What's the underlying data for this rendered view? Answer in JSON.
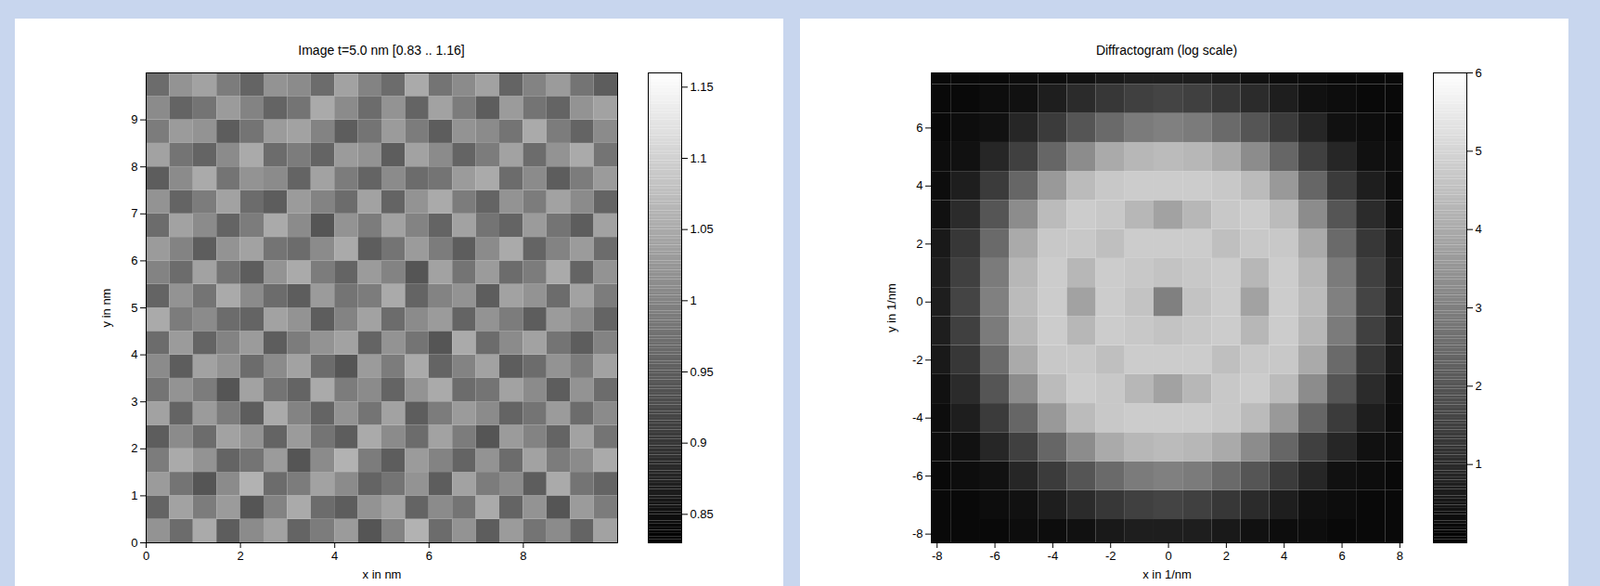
{
  "chart_data": [
    {
      "type": "heatmap",
      "title": "Image t=5.0 nm [0.83 .. 1.16]",
      "x_label": "x in nm",
      "y_label": "y in nm",
      "xlim": [
        0,
        10
      ],
      "ylim": [
        0,
        10
      ],
      "xticks": [
        0,
        2,
        4,
        6,
        8
      ],
      "yticks": [
        0,
        1,
        2,
        3,
        4,
        5,
        6,
        7,
        8,
        9
      ],
      "cells": {
        "x_edges": [
          0,
          0.5,
          1,
          1.5,
          2,
          2.5,
          3,
          3.5,
          4,
          4.5,
          5,
          5.5,
          6,
          6.5,
          7,
          7.5,
          8,
          8.5,
          9,
          9.5,
          10
        ],
        "y_edges": [
          0,
          0.5,
          1,
          1.5,
          2,
          2.5,
          3,
          3.5,
          4,
          4.5,
          5,
          5.5,
          6,
          6.5,
          7,
          7.5,
          8,
          8.5,
          9,
          9.5,
          10
        ],
        "values": [
          [
            1.02,
            0.97,
            1.05,
            0.95,
            1.01,
            1.04,
            0.96,
            0.99,
            1.03,
            0.94,
            1.0,
            1.06,
            0.97,
            1.02,
            0.95,
            1.03,
            0.98,
            1.01,
            0.96,
            1.04
          ],
          [
            0.96,
            1.04,
            0.99,
            1.03,
            0.94,
            1.0,
            1.05,
            0.97,
            0.95,
            1.02,
            1.04,
            0.96,
            1.01,
            0.98,
            1.05,
            0.96,
            1.02,
            0.94,
            1.03,
            0.99
          ],
          [
            1.03,
            0.98,
            0.94,
            1.01,
            1.06,
            0.97,
            0.99,
            1.04,
            1.01,
            0.96,
            0.98,
            1.02,
            0.95,
            1.04,
            0.99,
            1.01,
            0.95,
            1.05,
            0.98,
            0.96
          ],
          [
            0.99,
            1.05,
            1.02,
            0.96,
            0.98,
            1.03,
            0.94,
            1.01,
            1.06,
            0.99,
            0.95,
            1.03,
            1.0,
            0.96,
            1.02,
            0.97,
            1.04,
            0.99,
            1.01,
            1.05
          ],
          [
            0.95,
            1.01,
            0.97,
            1.04,
            1.02,
            0.96,
            1.03,
            0.98,
            0.95,
            1.05,
            1.01,
            0.97,
            1.04,
            0.99,
            0.94,
            1.03,
            1.0,
            0.96,
            1.04,
            0.98
          ],
          [
            1.04,
            0.96,
            1.03,
            0.99,
            0.95,
            1.05,
            1.0,
            0.96,
            1.02,
            0.98,
            1.04,
            0.95,
            0.99,
            1.03,
            1.01,
            0.96,
            0.98,
            1.03,
            0.97,
            1.01
          ],
          [
            0.98,
            1.02,
            0.99,
            0.94,
            1.04,
            0.98,
            0.96,
            1.05,
            0.99,
            1.01,
            0.96,
            1.02,
            1.05,
            0.97,
            0.98,
            1.04,
            1.01,
            0.95,
            1.02,
            0.97
          ],
          [
            1.01,
            0.95,
            1.04,
            1.02,
            0.97,
            1.01,
            1.04,
            0.97,
            0.94,
            1.03,
            0.99,
            1.05,
            0.96,
            1.0,
            1.04,
            0.95,
            0.97,
            1.02,
            0.99,
            1.04
          ],
          [
            0.97,
            1.03,
            0.96,
            1.0,
            1.03,
            0.95,
            0.99,
            1.02,
            1.04,
            0.96,
            1.02,
            0.98,
            0.94,
            1.05,
            0.97,
            1.01,
            1.04,
            0.98,
            0.95,
            1.0
          ],
          [
            1.05,
            0.99,
            1.01,
            0.97,
            0.96,
            1.04,
            1.02,
            0.95,
            1.0,
            1.04,
            0.97,
            1.01,
            1.03,
            0.96,
            1.02,
            0.99,
            0.95,
            1.03,
            1.01,
            0.96
          ],
          [
            0.96,
            1.02,
            0.98,
            1.05,
            1.01,
            0.97,
            0.95,
            1.03,
            0.98,
            0.99,
            1.05,
            0.96,
            1.0,
            1.02,
            0.95,
            1.04,
            1.02,
            0.97,
            1.04,
            0.99
          ],
          [
            1.0,
            0.97,
            1.04,
            0.98,
            0.95,
            1.02,
            1.05,
            0.99,
            0.96,
            1.03,
            1.0,
            0.94,
            1.04,
            0.98,
            1.03,
            0.97,
            0.99,
            1.05,
            0.96,
            1.02
          ],
          [
            1.03,
            1.0,
            0.95,
            1.02,
            1.04,
            0.98,
            0.97,
            1.01,
            1.05,
            0.95,
            0.98,
            1.03,
            0.99,
            0.95,
            1.01,
            1.05,
            0.96,
            1.0,
            1.03,
            0.97
          ],
          [
            0.97,
            1.04,
            1.01,
            0.96,
            0.99,
            1.05,
            1.01,
            0.94,
            1.02,
            0.99,
            1.04,
            1.0,
            0.96,
            1.04,
            0.98,
            0.96,
            1.03,
            0.98,
            0.95,
            1.04
          ],
          [
            1.02,
            0.96,
            0.99,
            1.04,
            0.97,
            0.95,
            1.03,
            1.0,
            0.97,
            1.04,
            0.96,
            1.02,
            1.05,
            0.99,
            0.96,
            1.02,
            0.99,
            1.04,
            1.01,
            0.96
          ],
          [
            0.95,
            1.01,
            1.05,
            0.98,
            1.02,
            1.01,
            0.96,
            1.04,
            0.99,
            0.96,
            1.01,
            0.97,
            0.98,
            1.03,
            1.05,
            0.97,
            1.01,
            0.95,
            0.99,
            1.03
          ],
          [
            1.04,
            0.98,
            0.96,
            1.01,
            1.05,
            0.97,
            0.99,
            0.96,
            1.03,
            1.02,
            0.95,
            1.04,
            1.01,
            0.96,
            0.99,
            1.04,
            0.97,
            1.02,
            1.05,
            0.98
          ],
          [
            0.99,
            1.03,
            1.02,
            0.95,
            0.98,
            1.03,
            1.04,
            1.0,
            0.95,
            0.98,
            1.03,
            0.99,
            0.95,
            1.02,
            1.01,
            0.98,
            1.05,
            0.99,
            0.96,
            1.01
          ],
          [
            1.01,
            0.96,
            0.98,
            1.03,
            1.0,
            0.96,
            0.98,
            1.05,
            1.01,
            0.97,
            1.02,
            0.96,
            1.04,
            0.99,
            0.95,
            1.03,
            0.98,
            0.96,
            1.02,
            1.04
          ],
          [
            0.97,
            1.02,
            1.04,
            0.99,
            0.96,
            1.02,
            1.01,
            0.97,
            1.04,
            1.0,
            0.97,
            1.05,
            0.98,
            1.01,
            1.04,
            0.96,
            1.0,
            1.03,
            0.98,
            0.95
          ]
        ]
      },
      "colorbar": {
        "range": [
          0.83,
          1.16
        ],
        "ticks": [
          0.85,
          0.9,
          0.95,
          1,
          1.05,
          1.1,
          1.15
        ]
      }
    },
    {
      "type": "heatmap",
      "title": "Diffractogram (log scale)",
      "x_label": "x in 1/nm",
      "y_label": "y in 1/nm",
      "xlim": [
        -8.2,
        8.1
      ],
      "ylim": [
        -8.3,
        7.9
      ],
      "xticks": [
        -8,
        -6,
        -4,
        -2,
        0,
        2,
        4,
        6,
        8
      ],
      "yticks": [
        -8,
        -6,
        -4,
        -2,
        0,
        2,
        4,
        6
      ],
      "cells": {
        "x_edges": [
          -8.5,
          -7.5,
          -6.5,
          -5.5,
          -4.5,
          -3.5,
          -2.5,
          -1.5,
          -0.5,
          0.5,
          1.5,
          2.5,
          3.5,
          4.5,
          5.5,
          6.5,
          7.5,
          8.5
        ],
        "y_edges": [
          -8.5,
          -7.5,
          -6.5,
          -5.5,
          -4.5,
          -3.5,
          -2.5,
          -1.5,
          -0.5,
          0.5,
          1.5,
          2.5,
          3.5,
          4.5,
          5.5,
          6.5,
          7.5,
          8.5
        ],
        "values": [
          [
            0.2,
            0.2,
            0.2,
            0.3,
            0.3,
            0.4,
            0.6,
            0.7,
            0.7,
            0.7,
            0.6,
            0.4,
            0.3,
            0.3,
            0.2,
            0.2,
            0.2
          ],
          [
            0.2,
            0.2,
            0.3,
            0.4,
            0.7,
            1.0,
            1.3,
            1.5,
            1.6,
            1.5,
            1.3,
            1.0,
            0.7,
            0.4,
            0.3,
            0.2,
            0.2
          ],
          [
            0.2,
            0.3,
            0.4,
            0.9,
            1.4,
            2.0,
            2.5,
            2.9,
            3.0,
            2.9,
            2.5,
            2.0,
            1.4,
            0.9,
            0.4,
            0.3,
            0.2
          ],
          [
            0.3,
            0.4,
            0.9,
            1.5,
            2.4,
            3.3,
            4.0,
            4.3,
            4.4,
            4.3,
            4.0,
            3.3,
            2.4,
            1.5,
            0.9,
            0.4,
            0.3
          ],
          [
            0.3,
            0.7,
            1.4,
            2.4,
            3.6,
            4.4,
            4.7,
            4.8,
            4.8,
            4.8,
            4.7,
            4.4,
            3.6,
            2.4,
            1.4,
            0.7,
            0.3
          ],
          [
            0.4,
            1.0,
            2.0,
            3.3,
            4.4,
            4.8,
            4.7,
            4.3,
            3.8,
            4.3,
            4.7,
            4.8,
            4.4,
            3.3,
            2.0,
            1.0,
            0.4
          ],
          [
            0.6,
            1.3,
            2.5,
            4.0,
            4.7,
            4.7,
            4.5,
            4.8,
            4.8,
            4.8,
            4.5,
            4.7,
            4.7,
            4.0,
            2.5,
            1.3,
            0.6
          ],
          [
            0.7,
            1.5,
            2.9,
            4.3,
            4.8,
            4.3,
            4.8,
            4.7,
            4.6,
            4.7,
            4.8,
            4.3,
            4.8,
            4.3,
            2.9,
            1.5,
            0.7
          ],
          [
            0.7,
            1.6,
            3.0,
            4.4,
            4.8,
            3.8,
            4.8,
            4.6,
            3.0,
            4.6,
            4.8,
            3.8,
            4.8,
            4.4,
            3.0,
            1.6,
            0.7
          ],
          [
            0.7,
            1.5,
            2.9,
            4.3,
            4.8,
            4.3,
            4.8,
            4.7,
            4.6,
            4.7,
            4.8,
            4.3,
            4.8,
            4.3,
            2.9,
            1.5,
            0.7
          ],
          [
            0.6,
            1.3,
            2.5,
            4.0,
            4.7,
            4.7,
            4.5,
            4.8,
            4.8,
            4.8,
            4.5,
            4.7,
            4.7,
            4.0,
            2.5,
            1.3,
            0.6
          ],
          [
            0.4,
            1.0,
            2.0,
            3.3,
            4.4,
            4.8,
            4.7,
            4.3,
            3.8,
            4.3,
            4.7,
            4.8,
            4.4,
            3.3,
            2.0,
            1.0,
            0.4
          ],
          [
            0.3,
            0.7,
            1.4,
            2.4,
            3.6,
            4.4,
            4.7,
            4.8,
            4.8,
            4.8,
            4.7,
            4.4,
            3.6,
            2.4,
            1.4,
            0.7,
            0.3
          ],
          [
            0.3,
            0.4,
            0.9,
            1.5,
            2.4,
            3.3,
            4.0,
            4.3,
            4.4,
            4.3,
            4.0,
            3.3,
            2.4,
            1.5,
            0.9,
            0.4,
            0.3
          ],
          [
            0.2,
            0.3,
            0.4,
            0.9,
            1.4,
            2.0,
            2.5,
            2.9,
            3.0,
            2.9,
            2.5,
            2.0,
            1.4,
            0.9,
            0.4,
            0.3,
            0.2
          ],
          [
            0.2,
            0.2,
            0.3,
            0.4,
            0.7,
            1.0,
            1.3,
            1.5,
            1.6,
            1.5,
            1.3,
            1.0,
            0.7,
            0.4,
            0.3,
            0.2,
            0.2
          ],
          [
            0.2,
            0.2,
            0.2,
            0.3,
            0.3,
            0.4,
            0.6,
            0.7,
            0.7,
            0.7,
            0.6,
            0.4,
            0.3,
            0.3,
            0.2,
            0.2,
            0.2
          ]
        ]
      },
      "colorbar": {
        "range": [
          0,
          6
        ],
        "ticks": [
          1,
          2,
          3,
          4,
          5,
          6
        ]
      }
    }
  ]
}
